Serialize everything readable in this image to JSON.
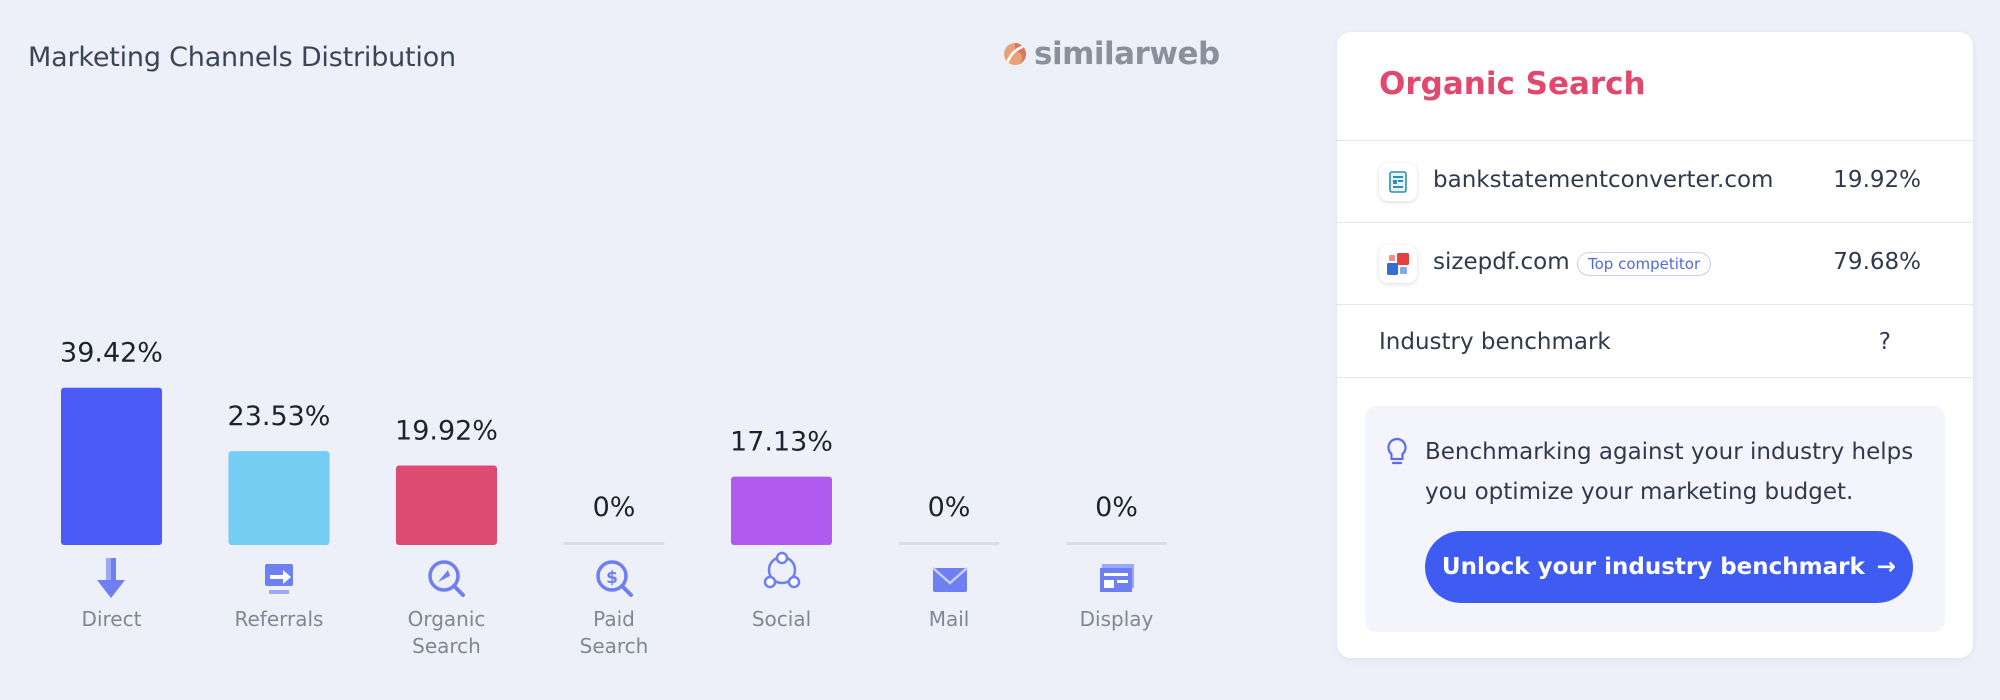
{
  "title": "Marketing Channels Distribution",
  "brand": {
    "name": "similarweb",
    "icon": "similarweb-logo-icon"
  },
  "chart_data": {
    "type": "bar",
    "categories": [
      "Direct",
      "Referrals",
      "Organic Search",
      "Paid Search",
      "Social",
      "Mail",
      "Display"
    ],
    "values": [
      39.42,
      23.53,
      19.92,
      0,
      17.13,
      0,
      0
    ],
    "value_labels": [
      "39.42%",
      "23.53%",
      "19.92%",
      "0%",
      "17.13%",
      "0%",
      "0%"
    ],
    "colors": [
      "#4a5cf5",
      "#74cdf2",
      "#de4b72",
      "#d9dced",
      "#b05af0",
      "#d9dced",
      "#d9dced"
    ],
    "icons": [
      "direct-icon",
      "referrals-icon",
      "organic-search-icon",
      "paid-search-icon",
      "social-icon",
      "mail-icon",
      "display-icon"
    ],
    "unit": "%",
    "legend": "none",
    "grid": false
  },
  "panel": {
    "title": "Organic Search",
    "title_color": "#e0486e",
    "rows": [
      {
        "domain": "bankstatementconverter.com",
        "value": "19.92%",
        "icon": "bankstatementconverter-favicon-icon"
      },
      {
        "domain": "sizepdf.com",
        "badge": "Top competitor",
        "value": "79.68%",
        "icon": "sizepdf-favicon-icon"
      }
    ],
    "benchmark": {
      "label": "Industry benchmark",
      "value": "?"
    },
    "info": {
      "icon": "lightbulb-icon",
      "text": "Benchmarking against your industry helps you optimize your marketing budget.",
      "button": "Unlock your industry benchmark",
      "button_color": "#3e5bf2"
    }
  }
}
